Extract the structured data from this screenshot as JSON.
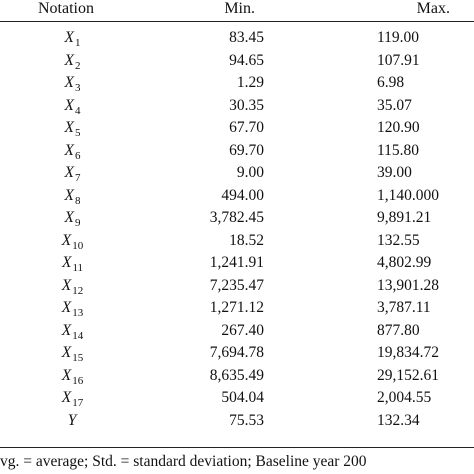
{
  "table": {
    "headers": {
      "notation": "Notation",
      "min": "Min.",
      "max": "Max."
    },
    "rows": [
      {
        "var": "X",
        "sub": "1",
        "min": "83.45",
        "max": "119.00"
      },
      {
        "var": "X",
        "sub": "2",
        "min": "94.65",
        "max": "107.91"
      },
      {
        "var": "X",
        "sub": "3",
        "min": "1.29",
        "max": "6.98"
      },
      {
        "var": "X",
        "sub": "4",
        "min": "30.35",
        "max": "35.07"
      },
      {
        "var": "X",
        "sub": "5",
        "min": "67.70",
        "max": "120.90"
      },
      {
        "var": "X",
        "sub": "6",
        "min": "69.70",
        "max": "115.80"
      },
      {
        "var": "X",
        "sub": "7",
        "min": "9.00",
        "max": "39.00"
      },
      {
        "var": "X",
        "sub": "8",
        "min": "494.00",
        "max": "1,140.000"
      },
      {
        "var": "X",
        "sub": "9",
        "min": "3,782.45",
        "max": "9,891.21"
      },
      {
        "var": "X",
        "sub": "10",
        "min": "18.52",
        "max": "132.55"
      },
      {
        "var": "X",
        "sub": "11",
        "min": "1,241.91",
        "max": "4,802.99"
      },
      {
        "var": "X",
        "sub": "12",
        "min": "7,235.47",
        "max": "13,901.28"
      },
      {
        "var": "X",
        "sub": "13",
        "min": "1,271.12",
        "max": "3,787.11"
      },
      {
        "var": "X",
        "sub": "14",
        "min": "267.40",
        "max": "877.80"
      },
      {
        "var": "X",
        "sub": "15",
        "min": "7,694.78",
        "max": "19,834.72"
      },
      {
        "var": "X",
        "sub": "16",
        "min": "8,635.49",
        "max": "29,152.61"
      },
      {
        "var": "X",
        "sub": "17",
        "min": "504.04",
        "max": "2,004.55"
      },
      {
        "var": "Y",
        "sub": "",
        "min": "75.53",
        "max": "132.34"
      }
    ]
  },
  "footnote": "vg. = average; Std. = standard deviation; Baseline year 200"
}
